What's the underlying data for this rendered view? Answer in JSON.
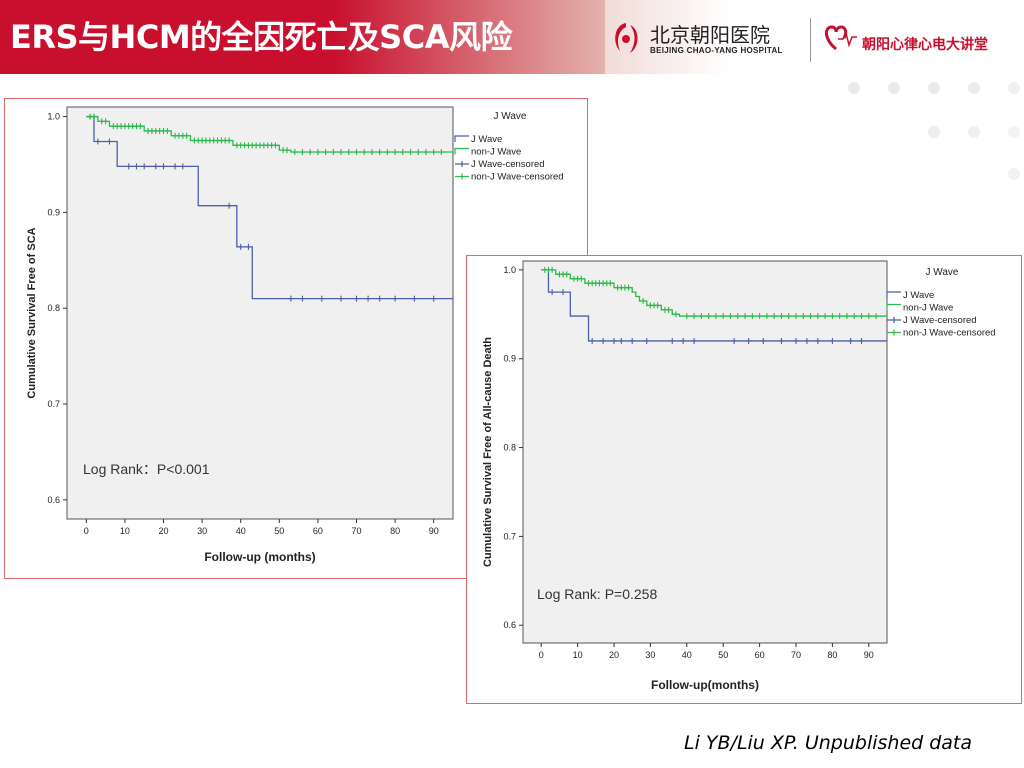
{
  "header": {
    "title": "ERS与HCM的全因死亡及SCA风险",
    "hospital_cn": "北京朝阳医院",
    "hospital_en": "BEIJING CHAO-YANG HOSPITAL",
    "brand": "朝阳心律心电大讲堂"
  },
  "colors": {
    "title_bg": "#c8102e",
    "j_wave": "#4a5fa8",
    "non_j_wave": "#2db84a",
    "plot_bg": "#f0f0f0",
    "panel_border": "#e36a6a"
  },
  "citation": "Li YB/Liu XP. Unpublished data",
  "chart_data": [
    {
      "type": "line",
      "title": "",
      "xlabel": "Follow-up (months)",
      "ylabel": "Cumulative Survival Free of SCA",
      "xlim": [
        -5,
        95
      ],
      "ylim": [
        0.58,
        1.01
      ],
      "xticks": [
        0,
        10,
        20,
        30,
        40,
        50,
        60,
        70,
        80,
        90
      ],
      "yticks": [
        0.6,
        0.7,
        0.8,
        0.9,
        1.0
      ],
      "ytick_labels": [
        "0.6",
        "0.7",
        "0.8",
        "0.9",
        "1.0"
      ],
      "legend_title": "J Wave",
      "legend": [
        "J Wave",
        "non-J Wave",
        "J Wave-censored",
        "non-J Wave-censored"
      ],
      "annotation": "Log Rank：P<0.001",
      "series": [
        {
          "name": "J Wave",
          "step": [
            [
              0,
              1.0
            ],
            [
              2,
              0.974
            ],
            [
              8,
              0.948
            ],
            [
              29,
              0.907
            ],
            [
              39,
              0.864
            ],
            [
              43,
              0.81
            ],
            [
              95,
              0.81
            ]
          ],
          "censored": [
            [
              3,
              0.974
            ],
            [
              6,
              0.974
            ],
            [
              11,
              0.948
            ],
            [
              13,
              0.948
            ],
            [
              15,
              0.948
            ],
            [
              18,
              0.948
            ],
            [
              20,
              0.948
            ],
            [
              23,
              0.948
            ],
            [
              25,
              0.948
            ],
            [
              37,
              0.907
            ],
            [
              40,
              0.864
            ],
            [
              42,
              0.864
            ],
            [
              53,
              0.81
            ],
            [
              56,
              0.81
            ],
            [
              61,
              0.81
            ],
            [
              66,
              0.81
            ],
            [
              70,
              0.81
            ],
            [
              73,
              0.81
            ],
            [
              76,
              0.81
            ],
            [
              80,
              0.81
            ],
            [
              85,
              0.81
            ],
            [
              90,
              0.81
            ]
          ]
        },
        {
          "name": "non-J Wave",
          "step": [
            [
              0,
              1.0
            ],
            [
              3,
              0.995
            ],
            [
              6,
              0.99
            ],
            [
              15,
              0.985
            ],
            [
              22,
              0.98
            ],
            [
              27,
              0.975
            ],
            [
              38,
              0.97
            ],
            [
              50,
              0.965
            ],
            [
              53,
              0.963
            ],
            [
              95,
              0.963
            ]
          ],
          "censored": [
            [
              1,
              1.0
            ],
            [
              2,
              1.0
            ],
            [
              4,
              0.995
            ],
            [
              5,
              0.995
            ],
            [
              7,
              0.99
            ],
            [
              8,
              0.99
            ],
            [
              9,
              0.99
            ],
            [
              10,
              0.99
            ],
            [
              11,
              0.99
            ],
            [
              12,
              0.99
            ],
            [
              13,
              0.99
            ],
            [
              14,
              0.99
            ],
            [
              16,
              0.985
            ],
            [
              17,
              0.985
            ],
            [
              18,
              0.985
            ],
            [
              19,
              0.985
            ],
            [
              20,
              0.985
            ],
            [
              21,
              0.985
            ],
            [
              23,
              0.98
            ],
            [
              24,
              0.98
            ],
            [
              25,
              0.98
            ],
            [
              26,
              0.98
            ],
            [
              28,
              0.975
            ],
            [
              29,
              0.975
            ],
            [
              30,
              0.975
            ],
            [
              31,
              0.975
            ],
            [
              32,
              0.975
            ],
            [
              33,
              0.975
            ],
            [
              34,
              0.975
            ],
            [
              35,
              0.975
            ],
            [
              36,
              0.975
            ],
            [
              37,
              0.975
            ],
            [
              39,
              0.97
            ],
            [
              40,
              0.97
            ],
            [
              41,
              0.97
            ],
            [
              42,
              0.97
            ],
            [
              43,
              0.97
            ],
            [
              44,
              0.97
            ],
            [
              45,
              0.97
            ],
            [
              46,
              0.97
            ],
            [
              47,
              0.97
            ],
            [
              48,
              0.97
            ],
            [
              49,
              0.97
            ],
            [
              51,
              0.965
            ],
            [
              52,
              0.965
            ],
            [
              54,
              0.963
            ],
            [
              56,
              0.963
            ],
            [
              58,
              0.963
            ],
            [
              60,
              0.963
            ],
            [
              62,
              0.963
            ],
            [
              64,
              0.963
            ],
            [
              66,
              0.963
            ],
            [
              68,
              0.963
            ],
            [
              70,
              0.963
            ],
            [
              72,
              0.963
            ],
            [
              74,
              0.963
            ],
            [
              76,
              0.963
            ],
            [
              78,
              0.963
            ],
            [
              80,
              0.963
            ],
            [
              82,
              0.963
            ],
            [
              84,
              0.963
            ],
            [
              86,
              0.963
            ],
            [
              88,
              0.963
            ],
            [
              90,
              0.963
            ],
            [
              92,
              0.963
            ]
          ]
        }
      ]
    },
    {
      "type": "line",
      "title": "",
      "xlabel": "Follow-up(months)",
      "ylabel": "Cumulative Survival Free of All-cause Death",
      "xlim": [
        -5,
        95
      ],
      "ylim": [
        0.58,
        1.01
      ],
      "xticks": [
        0,
        10,
        20,
        30,
        40,
        50,
        60,
        70,
        80,
        90
      ],
      "yticks": [
        0.6,
        0.7,
        0.8,
        0.9,
        1.0
      ],
      "ytick_labels": [
        "0.6",
        "0.7",
        "0.8",
        "0.9",
        "1.0"
      ],
      "legend_title": "J Wave",
      "legend": [
        "J Wave",
        "non-J Wave",
        "J Wave-censored",
        "non-J Wave-censored"
      ],
      "annotation": "Log Rank: P=0.258",
      "series": [
        {
          "name": "J Wave",
          "step": [
            [
              0,
              1.0
            ],
            [
              2,
              0.975
            ],
            [
              8,
              0.948
            ],
            [
              13,
              0.92
            ],
            [
              95,
              0.92
            ]
          ],
          "censored": [
            [
              3,
              0.975
            ],
            [
              6,
              0.975
            ],
            [
              14,
              0.92
            ],
            [
              17,
              0.92
            ],
            [
              20,
              0.92
            ],
            [
              22,
              0.92
            ],
            [
              25,
              0.92
            ],
            [
              29,
              0.92
            ],
            [
              36,
              0.92
            ],
            [
              39,
              0.92
            ],
            [
              42,
              0.92
            ],
            [
              53,
              0.92
            ],
            [
              57,
              0.92
            ],
            [
              61,
              0.92
            ],
            [
              66,
              0.92
            ],
            [
              70,
              0.92
            ],
            [
              73,
              0.92
            ],
            [
              76,
              0.92
            ],
            [
              80,
              0.92
            ],
            [
              85,
              0.92
            ],
            [
              88,
              0.92
            ]
          ]
        },
        {
          "name": "non-J Wave",
          "step": [
            [
              0,
              1.0
            ],
            [
              4,
              0.995
            ],
            [
              8,
              0.99
            ],
            [
              12,
              0.985
            ],
            [
              20,
              0.98
            ],
            [
              25,
              0.975
            ],
            [
              26,
              0.97
            ],
            [
              27,
              0.965
            ],
            [
              29,
              0.96
            ],
            [
              33,
              0.955
            ],
            [
              36,
              0.95
            ],
            [
              38,
              0.948
            ],
            [
              95,
              0.948
            ]
          ],
          "censored": [
            [
              1,
              1.0
            ],
            [
              2,
              1.0
            ],
            [
              3,
              1.0
            ],
            [
              5,
              0.995
            ],
            [
              6,
              0.995
            ],
            [
              7,
              0.995
            ],
            [
              9,
              0.99
            ],
            [
              10,
              0.99
            ],
            [
              11,
              0.99
            ],
            [
              13,
              0.985
            ],
            [
              14,
              0.985
            ],
            [
              15,
              0.985
            ],
            [
              16,
              0.985
            ],
            [
              17,
              0.985
            ],
            [
              18,
              0.985
            ],
            [
              19,
              0.985
            ],
            [
              21,
              0.98
            ],
            [
              22,
              0.98
            ],
            [
              23,
              0.98
            ],
            [
              24,
              0.98
            ],
            [
              28,
              0.965
            ],
            [
              30,
              0.96
            ],
            [
              31,
              0.96
            ],
            [
              32,
              0.96
            ],
            [
              34,
              0.955
            ],
            [
              35,
              0.955
            ],
            [
              37,
              0.95
            ],
            [
              40,
              0.948
            ],
            [
              42,
              0.948
            ],
            [
              44,
              0.948
            ],
            [
              46,
              0.948
            ],
            [
              48,
              0.948
            ],
            [
              50,
              0.948
            ],
            [
              52,
              0.948
            ],
            [
              54,
              0.948
            ],
            [
              56,
              0.948
            ],
            [
              58,
              0.948
            ],
            [
              60,
              0.948
            ],
            [
              62,
              0.948
            ],
            [
              64,
              0.948
            ],
            [
              66,
              0.948
            ],
            [
              68,
              0.948
            ],
            [
              70,
              0.948
            ],
            [
              72,
              0.948
            ],
            [
              74,
              0.948
            ],
            [
              76,
              0.948
            ],
            [
              78,
              0.948
            ],
            [
              80,
              0.948
            ],
            [
              82,
              0.948
            ],
            [
              84,
              0.948
            ],
            [
              86,
              0.948
            ],
            [
              88,
              0.948
            ],
            [
              90,
              0.948
            ],
            [
              92,
              0.948
            ]
          ]
        }
      ]
    }
  ]
}
